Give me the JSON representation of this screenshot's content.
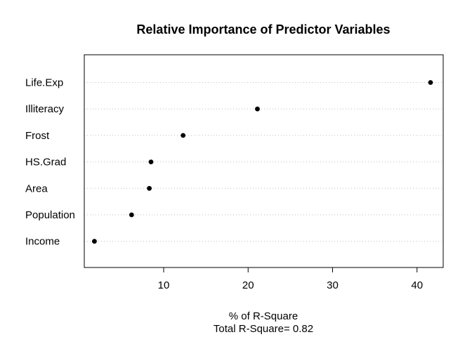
{
  "chart_data": {
    "type": "dotplot",
    "title": "Relative Importance of Predictor Variables",
    "xlabel": "% of R-Square",
    "xlabel2": "Total R-Square= 0.82",
    "ylabel": "",
    "xlim": [
      0.6,
      43.1
    ],
    "xticks": [
      10,
      20,
      30,
      40
    ],
    "grid": "dotted horizontal lines per category",
    "legend": "none",
    "categories": [
      "Life.Exp",
      "Illiteracy",
      "Frost",
      "HS.Grad",
      "Area",
      "Population",
      "Income"
    ],
    "values": [
      41.6,
      21.1,
      12.3,
      8.5,
      8.3,
      6.2,
      1.8
    ],
    "point_color": "#000000",
    "grid_color": "#bebebe"
  }
}
